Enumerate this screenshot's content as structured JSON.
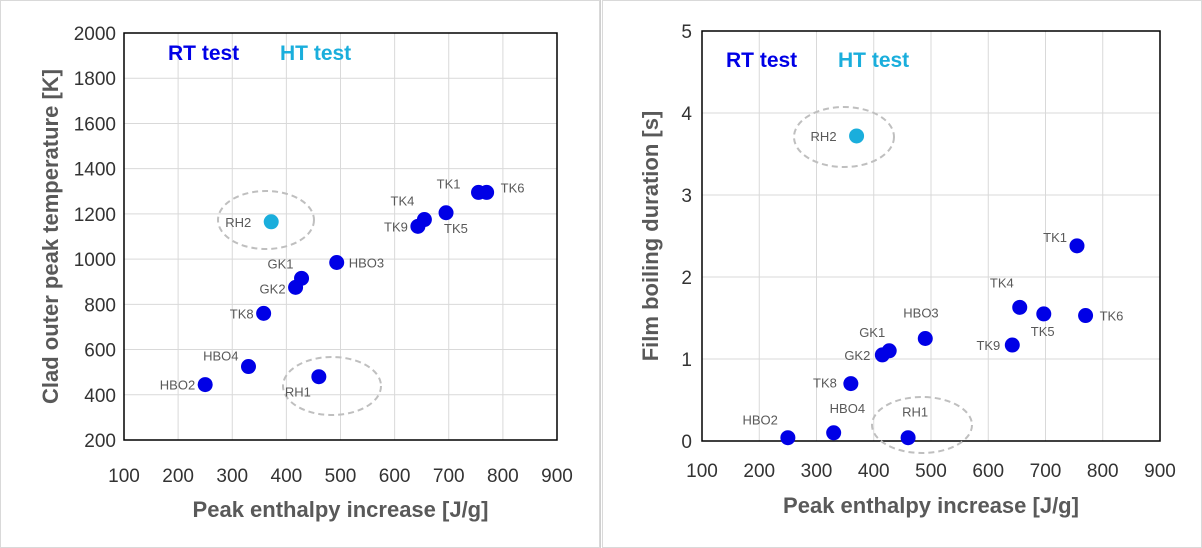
{
  "colors": {
    "rt": "#0000e6",
    "ht": "#1aaedc",
    "grid": "#d9d9d9",
    "ellipse": "#bfbfbf"
  },
  "chart_data": [
    {
      "type": "scatter",
      "xlabel": "Peak enthalpy increase [J/g]",
      "ylabel": "Clad outer peak temperature [K]",
      "xlim": [
        100,
        900
      ],
      "ylim": [
        200,
        2000
      ],
      "x_ticks": [
        "100",
        "200",
        "300",
        "400",
        "500",
        "600",
        "700",
        "800",
        "900"
      ],
      "y_ticks": [
        "200",
        "400",
        "600",
        "800",
        "1000",
        "1200",
        "1400",
        "1600",
        "1800",
        "2000"
      ],
      "grid": true,
      "legend": {
        "position": "top-left",
        "items": [
          "RT test",
          "HT test"
        ]
      },
      "series": [
        {
          "name": "RT test",
          "points": [
            {
              "label": "HBO2",
              "x": 250,
              "y": 445
            },
            {
              "label": "HBO4",
              "x": 330,
              "y": 525
            },
            {
              "label": "RH1",
              "x": 460,
              "y": 480
            },
            {
              "label": "TK8",
              "x": 358,
              "y": 760
            },
            {
              "label": "GK2",
              "x": 417,
              "y": 875
            },
            {
              "label": "GK1",
              "x": 428,
              "y": 915
            },
            {
              "label": "HBO3",
              "x": 493,
              "y": 985
            },
            {
              "label": "TK9",
              "x": 643,
              "y": 1145
            },
            {
              "label": "TK4",
              "x": 655,
              "y": 1175
            },
            {
              "label": "TK5",
              "x": 695,
              "y": 1205
            },
            {
              "label": "TK1",
              "x": 755,
              "y": 1295
            },
            {
              "label": "TK6",
              "x": 770,
              "y": 1295
            }
          ]
        },
        {
          "name": "HT test",
          "points": [
            {
              "label": "RH2",
              "x": 372,
              "y": 1165
            }
          ]
        }
      ]
    },
    {
      "type": "scatter",
      "xlabel": "Peak enthalpy increase [J/g]",
      "ylabel": "Film boiling duration [s]",
      "xlim": [
        100,
        900
      ],
      "ylim": [
        0,
        5
      ],
      "x_ticks": [
        "100",
        "200",
        "300",
        "400",
        "500",
        "600",
        "700",
        "800",
        "900"
      ],
      "y_ticks": [
        "0",
        "1",
        "2",
        "3",
        "4",
        "5"
      ],
      "grid": true,
      "legend": {
        "position": "top-left",
        "items": [
          "RT test",
          "HT test"
        ]
      },
      "series": [
        {
          "name": "RT test",
          "points": [
            {
              "label": "HBO2",
              "x": 250,
              "y": 0.04
            },
            {
              "label": "HBO4",
              "x": 330,
              "y": 0.1
            },
            {
              "label": "RH1",
              "x": 460,
              "y": 0.04
            },
            {
              "label": "TK8",
              "x": 360,
              "y": 0.7
            },
            {
              "label": "GK2",
              "x": 415,
              "y": 1.05
            },
            {
              "label": "GK1",
              "x": 427,
              "y": 1.1
            },
            {
              "label": "HBO3",
              "x": 490,
              "y": 1.25
            },
            {
              "label": "TK9",
              "x": 642,
              "y": 1.17
            },
            {
              "label": "TK4",
              "x": 655,
              "y": 1.63
            },
            {
              "label": "TK5",
              "x": 697,
              "y": 1.55
            },
            {
              "label": "TK1",
              "x": 755,
              "y": 2.38
            },
            {
              "label": "TK6",
              "x": 770,
              "y": 1.53
            }
          ]
        },
        {
          "name": "HT test",
          "points": [
            {
              "label": "RH2",
              "x": 370,
              "y": 3.72
            }
          ]
        }
      ]
    }
  ]
}
